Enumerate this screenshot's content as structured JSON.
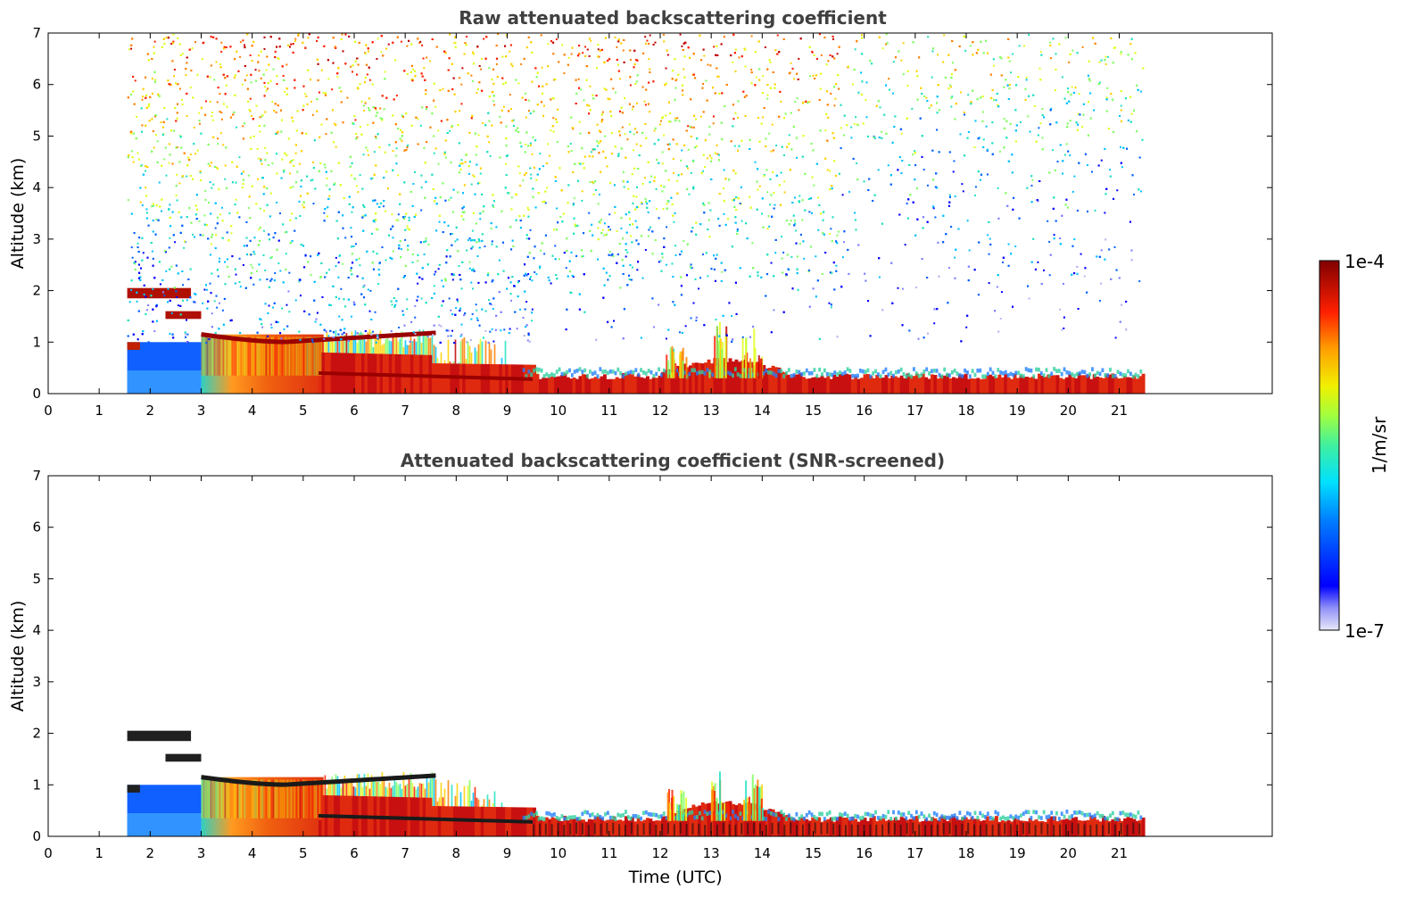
{
  "chart_data": [
    {
      "type": "heatmap",
      "title": "Raw attenuated backscattering coefficient",
      "xlabel": "",
      "ylabel": "Altitude (km)",
      "xlim": [
        0,
        24
      ],
      "ylim": [
        0,
        7
      ],
      "xticks": [
        "0",
        "1",
        "2",
        "3",
        "4",
        "5",
        "6",
        "7",
        "8",
        "9",
        "10",
        "11",
        "12",
        "13",
        "14",
        "15",
        "16",
        "17",
        "18",
        "19",
        "20",
        "21"
      ],
      "yticks": [
        "0",
        "1",
        "2",
        "3",
        "4",
        "5",
        "6",
        "7"
      ],
      "data_time_range": [
        1.55,
        21.45
      ],
      "features": [
        {
          "name": "boundary-layer-bottom",
          "x": [
            3.0,
            21.45
          ],
          "y": [
            0,
            0.3
          ]
        },
        {
          "name": "aerosol-layer",
          "x": [
            3.0,
            5.4
          ],
          "y": [
            0,
            1.15
          ]
        },
        {
          "name": "cloud-top-ridge",
          "x": [
            3.0,
            7.5
          ],
          "y": [
            1.0,
            1.2
          ]
        },
        {
          "name": "cloud-2km",
          "x": [
            1.55,
            2.8
          ],
          "y": [
            1.9,
            2.0
          ]
        },
        {
          "name": "cloud-1-5km",
          "x": [
            2.2,
            3.0
          ],
          "y": [
            1.5,
            1.55
          ]
        },
        {
          "name": "convective-plume-13",
          "x": [
            12.0,
            14.5
          ],
          "y": [
            0.3,
            1.4
          ]
        }
      ]
    },
    {
      "type": "heatmap",
      "title": "Attenuated backscattering coefficient (SNR-screened)",
      "xlabel": "Time (UTC)",
      "ylabel": "Altitude (km)",
      "xlim": [
        0,
        24
      ],
      "ylim": [
        0,
        7
      ],
      "xticks": [
        "0",
        "1",
        "2",
        "3",
        "4",
        "5",
        "6",
        "7",
        "8",
        "9",
        "10",
        "11",
        "12",
        "13",
        "14",
        "15",
        "16",
        "17",
        "18",
        "19",
        "20",
        "21"
      ],
      "yticks": [
        "0",
        "1",
        "2",
        "3",
        "4",
        "5",
        "6",
        "7"
      ],
      "data_time_range": [
        1.55,
        21.45
      ]
    }
  ],
  "colorbar": {
    "max_label": "1e-4",
    "min_label": "1e-7",
    "unit_label": "1/m/sr",
    "colors": [
      "#e8e8f8",
      "#b8b8f0",
      "#8080ff",
      "#0000ff",
      "#0060ff",
      "#00c0ff",
      "#20e0c0",
      "#80ff60",
      "#e0ff20",
      "#ffd000",
      "#ff8000",
      "#ff2000",
      "#c00000",
      "#800000"
    ]
  }
}
